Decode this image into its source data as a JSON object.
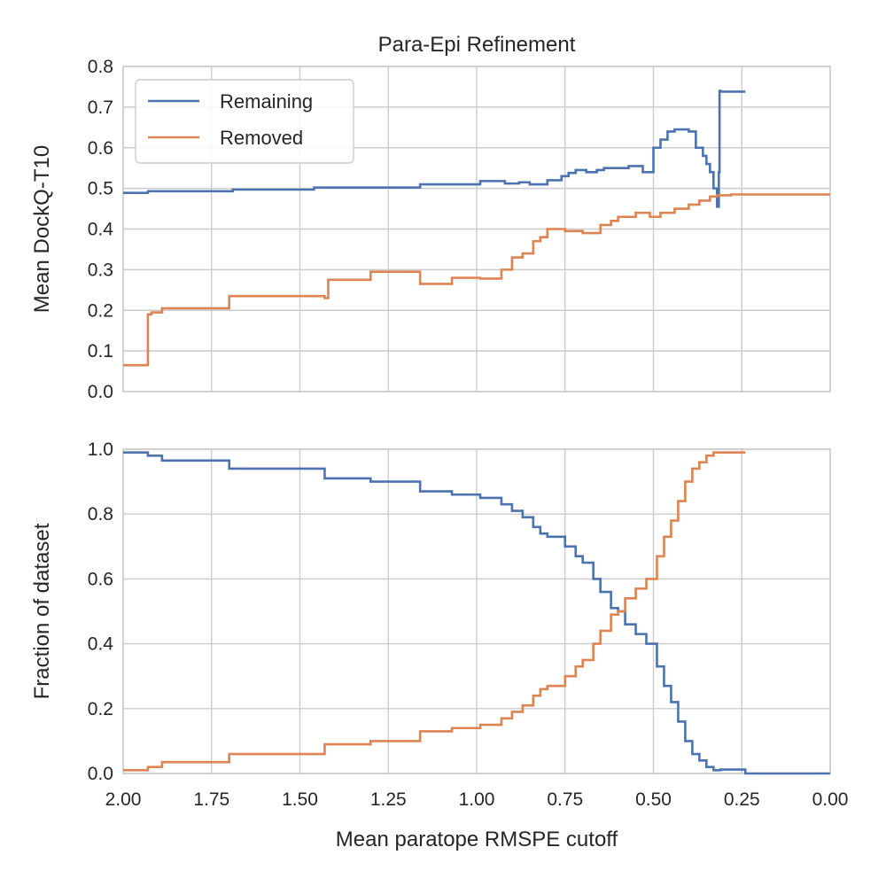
{
  "figure": {
    "title": "Para-Epi Refinement",
    "xlabel": "Mean paratope RMSPE cutoff",
    "legend": {
      "remaining": "Remaining",
      "removed": "Removed"
    }
  },
  "colors": {
    "remaining": "#4c72b0",
    "removed": "#dd8452"
  },
  "chart_data": [
    {
      "type": "line",
      "title": "Para-Epi Refinement",
      "xlabel": "",
      "ylabel": "Mean DockQ-T10",
      "xlim": [
        2.0,
        0.0
      ],
      "ylim": [
        0.0,
        0.8
      ],
      "x_inverted": true,
      "grid": true,
      "legend": "top-left",
      "xticks": [
        "2.00",
        "1.75",
        "1.50",
        "1.25",
        "1.00",
        "0.75",
        "0.50",
        "0.25",
        "0.00"
      ],
      "yticks": [
        "0.0",
        "0.1",
        "0.2",
        "0.3",
        "0.4",
        "0.5",
        "0.6",
        "0.7",
        "0.8"
      ],
      "series": [
        {
          "name": "Remaining",
          "color": "#4c72b0",
          "x": [
            2.0,
            1.93,
            1.93,
            1.69,
            1.69,
            1.46,
            1.46,
            1.16,
            1.16,
            0.99,
            0.99,
            0.92,
            0.92,
            0.88,
            0.88,
            0.85,
            0.85,
            0.8,
            0.8,
            0.76,
            0.76,
            0.74,
            0.74,
            0.72,
            0.72,
            0.69,
            0.69,
            0.66,
            0.66,
            0.64,
            0.64,
            0.6,
            0.6,
            0.57,
            0.57,
            0.53,
            0.53,
            0.5,
            0.5,
            0.48,
            0.48,
            0.46,
            0.46,
            0.44,
            0.44,
            0.42,
            0.42,
            0.4,
            0.4,
            0.38,
            0.38,
            0.36,
            0.36,
            0.35,
            0.35,
            0.34,
            0.34,
            0.33,
            0.33,
            0.32,
            0.32,
            0.315,
            0.315,
            0.313,
            0.313,
            0.31,
            0.31,
            0.24
          ],
          "y": [
            0.489,
            0.489,
            0.493,
            0.493,
            0.497,
            0.497,
            0.502,
            0.502,
            0.51,
            0.51,
            0.518,
            0.518,
            0.512,
            0.512,
            0.515,
            0.515,
            0.51,
            0.51,
            0.52,
            0.52,
            0.53,
            0.53,
            0.538,
            0.538,
            0.545,
            0.545,
            0.54,
            0.54,
            0.545,
            0.545,
            0.55,
            0.55,
            0.55,
            0.55,
            0.555,
            0.555,
            0.54,
            0.54,
            0.6,
            0.6,
            0.62,
            0.62,
            0.64,
            0.64,
            0.645,
            0.645,
            0.645,
            0.645,
            0.64,
            0.64,
            0.6,
            0.6,
            0.58,
            0.58,
            0.56,
            0.56,
            0.54,
            0.54,
            0.5,
            0.5,
            0.455,
            0.455,
            0.54,
            0.54,
            0.74,
            0.74,
            0.738,
            0.738
          ]
        },
        {
          "name": "Removed",
          "color": "#dd8452",
          "x": [
            2.0,
            1.93,
            1.93,
            1.92,
            1.92,
            1.89,
            1.89,
            1.7,
            1.7,
            1.43,
            1.43,
            1.42,
            1.42,
            1.3,
            1.3,
            1.16,
            1.16,
            1.07,
            1.07,
            0.99,
            0.99,
            0.93,
            0.93,
            0.92,
            0.92,
            0.9,
            0.9,
            0.87,
            0.87,
            0.84,
            0.84,
            0.82,
            0.82,
            0.8,
            0.8,
            0.75,
            0.75,
            0.7,
            0.7,
            0.65,
            0.65,
            0.62,
            0.62,
            0.6,
            0.6,
            0.55,
            0.55,
            0.51,
            0.51,
            0.48,
            0.48,
            0.44,
            0.44,
            0.4,
            0.4,
            0.37,
            0.37,
            0.34,
            0.34,
            0.32,
            0.32,
            0.28,
            0.28,
            0.0
          ],
          "y": [
            0.065,
            0.065,
            0.19,
            0.19,
            0.195,
            0.195,
            0.205,
            0.205,
            0.235,
            0.235,
            0.23,
            0.23,
            0.275,
            0.275,
            0.295,
            0.295,
            0.265,
            0.265,
            0.28,
            0.28,
            0.278,
            0.278,
            0.3,
            0.3,
            0.3,
            0.3,
            0.33,
            0.33,
            0.34,
            0.34,
            0.37,
            0.37,
            0.38,
            0.38,
            0.4,
            0.4,
            0.395,
            0.395,
            0.39,
            0.39,
            0.41,
            0.41,
            0.42,
            0.42,
            0.43,
            0.43,
            0.44,
            0.44,
            0.43,
            0.43,
            0.44,
            0.44,
            0.45,
            0.45,
            0.46,
            0.46,
            0.47,
            0.47,
            0.48,
            0.48,
            0.483,
            0.483,
            0.485,
            0.485
          ]
        }
      ]
    },
    {
      "type": "line",
      "title": "",
      "xlabel": "Mean paratope RMSPE cutoff",
      "ylabel": "Fraction of dataset",
      "xlim": [
        2.0,
        0.0
      ],
      "ylim": [
        0.0,
        1.0
      ],
      "x_inverted": true,
      "grid": true,
      "xticks": [
        "2.00",
        "1.75",
        "1.50",
        "1.25",
        "1.00",
        "0.75",
        "0.50",
        "0.25",
        "0.00"
      ],
      "yticks": [
        "0.0",
        "0.2",
        "0.4",
        "0.6",
        "0.8",
        "1.0"
      ],
      "series": [
        {
          "name": "Remaining",
          "color": "#4c72b0",
          "x": [
            2.0,
            1.93,
            1.93,
            1.89,
            1.89,
            1.7,
            1.7,
            1.43,
            1.43,
            1.3,
            1.3,
            1.16,
            1.16,
            1.07,
            1.07,
            0.99,
            0.99,
            0.93,
            0.93,
            0.9,
            0.9,
            0.87,
            0.87,
            0.84,
            0.84,
            0.82,
            0.82,
            0.8,
            0.8,
            0.75,
            0.75,
            0.72,
            0.72,
            0.7,
            0.7,
            0.67,
            0.67,
            0.65,
            0.65,
            0.62,
            0.62,
            0.6,
            0.6,
            0.58,
            0.58,
            0.55,
            0.55,
            0.52,
            0.52,
            0.49,
            0.49,
            0.47,
            0.47,
            0.45,
            0.45,
            0.43,
            0.43,
            0.41,
            0.41,
            0.39,
            0.39,
            0.37,
            0.37,
            0.35,
            0.35,
            0.33,
            0.33,
            0.31,
            0.31,
            0.24,
            0.24,
            0.0
          ],
          "y": [
            0.99,
            0.99,
            0.98,
            0.98,
            0.965,
            0.965,
            0.94,
            0.94,
            0.91,
            0.91,
            0.9,
            0.9,
            0.87,
            0.87,
            0.86,
            0.86,
            0.85,
            0.85,
            0.83,
            0.83,
            0.81,
            0.81,
            0.79,
            0.79,
            0.76,
            0.76,
            0.74,
            0.74,
            0.73,
            0.73,
            0.7,
            0.7,
            0.67,
            0.67,
            0.65,
            0.65,
            0.6,
            0.6,
            0.56,
            0.56,
            0.51,
            0.51,
            0.5,
            0.5,
            0.46,
            0.46,
            0.43,
            0.43,
            0.4,
            0.4,
            0.33,
            0.33,
            0.27,
            0.27,
            0.22,
            0.22,
            0.16,
            0.16,
            0.1,
            0.1,
            0.06,
            0.06,
            0.04,
            0.04,
            0.02,
            0.02,
            0.01,
            0.01,
            0.012,
            0.012,
            0.0,
            0.0
          ]
        },
        {
          "name": "Removed",
          "color": "#dd8452",
          "x": [
            2.0,
            1.93,
            1.93,
            1.89,
            1.89,
            1.7,
            1.7,
            1.43,
            1.43,
            1.3,
            1.3,
            1.16,
            1.16,
            1.07,
            1.07,
            0.99,
            0.99,
            0.93,
            0.93,
            0.9,
            0.9,
            0.87,
            0.87,
            0.84,
            0.84,
            0.82,
            0.82,
            0.8,
            0.8,
            0.75,
            0.75,
            0.72,
            0.72,
            0.7,
            0.7,
            0.67,
            0.67,
            0.65,
            0.65,
            0.62,
            0.62,
            0.6,
            0.6,
            0.58,
            0.58,
            0.55,
            0.55,
            0.52,
            0.52,
            0.49,
            0.49,
            0.47,
            0.47,
            0.45,
            0.45,
            0.43,
            0.43,
            0.41,
            0.41,
            0.39,
            0.39,
            0.37,
            0.37,
            0.35,
            0.35,
            0.33,
            0.33,
            0.31,
            0.31,
            0.24
          ],
          "y": [
            0.01,
            0.01,
            0.02,
            0.02,
            0.035,
            0.035,
            0.06,
            0.06,
            0.09,
            0.09,
            0.1,
            0.1,
            0.13,
            0.13,
            0.14,
            0.14,
            0.15,
            0.15,
            0.17,
            0.17,
            0.19,
            0.19,
            0.21,
            0.21,
            0.24,
            0.24,
            0.26,
            0.26,
            0.27,
            0.27,
            0.3,
            0.3,
            0.33,
            0.33,
            0.35,
            0.35,
            0.4,
            0.4,
            0.44,
            0.44,
            0.49,
            0.49,
            0.5,
            0.5,
            0.54,
            0.54,
            0.57,
            0.57,
            0.6,
            0.6,
            0.67,
            0.67,
            0.73,
            0.73,
            0.78,
            0.78,
            0.84,
            0.84,
            0.9,
            0.9,
            0.94,
            0.94,
            0.96,
            0.96,
            0.98,
            0.98,
            0.99,
            0.99,
            0.99,
            0.99
          ]
        }
      ]
    }
  ]
}
